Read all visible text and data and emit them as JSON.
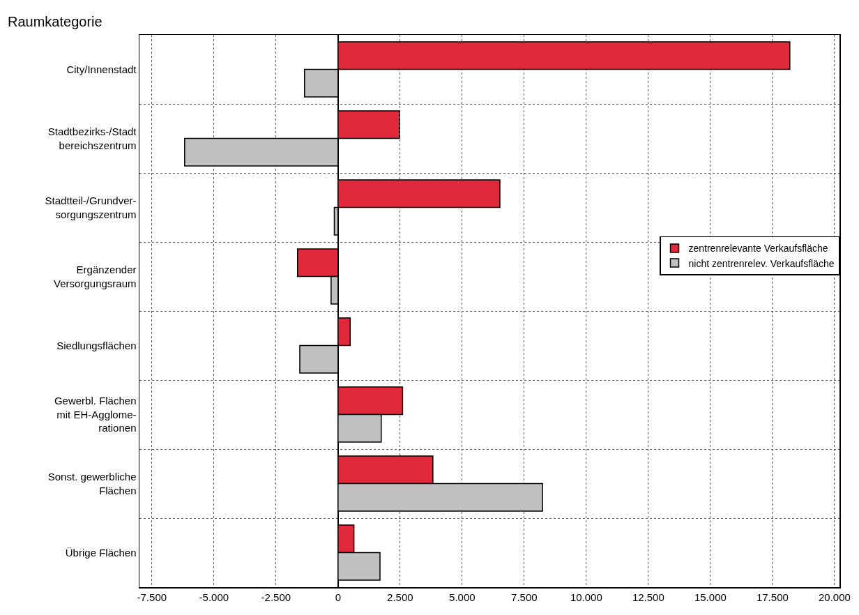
{
  "chart_data": {
    "type": "bar",
    "orientation": "horizontal",
    "ylabel": "Raumkategorie",
    "categories": [
      "City/Innenstadt",
      "Stadtbezirks-/Stadt\nbereichszentrum",
      "Stadtteil-/Grundver-\nsorgungszentrum",
      "Ergänzender\nVersorgungsraum",
      "Siedlungsflächen",
      "Gewerbl. Flächen\nmit EH-Agglome-\nrationen",
      "Sonst. gewerbliche\nFlächen",
      "Übrige Flächen"
    ],
    "series": [
      {
        "name": "zentrenrelevante Verkaufsfläche",
        "color": "#e0293b",
        "values": [
          18200,
          2470,
          6520,
          -1630,
          490,
          2600,
          3820,
          640
        ]
      },
      {
        "name": "nicht zentrenrelev. Verkaufsfläche",
        "color": "#c0c0c0",
        "values": [
          -1350,
          -6180,
          -150,
          -280,
          -1540,
          1740,
          8240,
          1690
        ]
      }
    ],
    "xlim": [
      -8000,
      20200
    ],
    "xticks": [
      {
        "value": -7500,
        "label": "-7.500"
      },
      {
        "value": -5000,
        "label": "-5.000"
      },
      {
        "value": -2500,
        "label": "-2.500"
      },
      0,
      {
        "value": 2500,
        "label": "2.500"
      },
      {
        "value": 5000,
        "label": "5.000"
      },
      {
        "value": 7500,
        "label": "7.500"
      },
      {
        "value": 10000,
        "label": "10.000"
      },
      {
        "value": 12500,
        "label": "12.500"
      },
      {
        "value": 15000,
        "label": "15.000"
      },
      {
        "value": 17500,
        "label": "17.500"
      },
      {
        "value": 20000,
        "label": "20.000"
      }
    ],
    "grid": true,
    "legend": "right"
  }
}
